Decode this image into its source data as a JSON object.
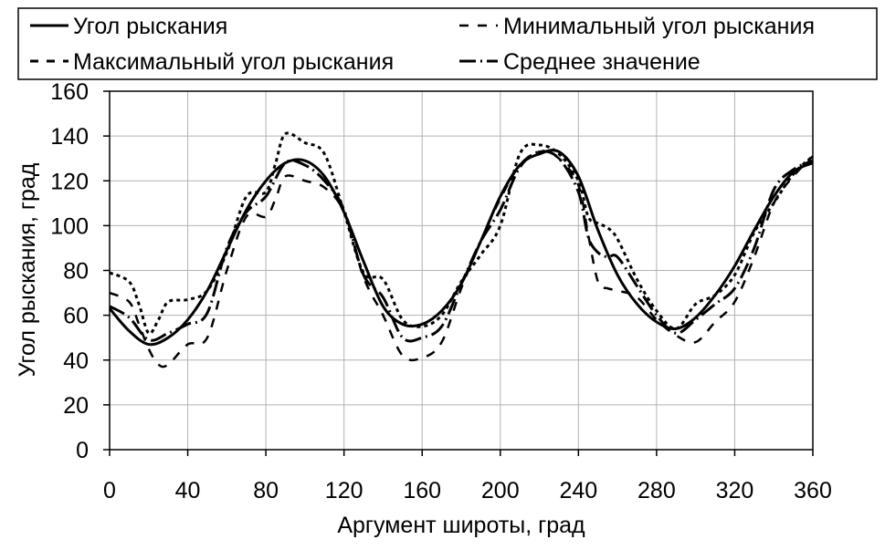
{
  "chart_data": {
    "type": "line",
    "xlabel": "Аргумент широты, град",
    "ylabel": "Угол рыскания, град",
    "xlim": [
      0,
      360
    ],
    "ylim": [
      0,
      160
    ],
    "xticks": [
      "0",
      "40",
      "80",
      "120",
      "160",
      "200",
      "240",
      "280",
      "320",
      "360"
    ],
    "yticks": [
      "0",
      "20",
      "40",
      "60",
      "80",
      "100",
      "120",
      "140",
      "160"
    ],
    "grid": true,
    "legend_position": "top",
    "series": [
      {
        "name": "Угол рыскания",
        "style": "solid",
        "x": [
          0,
          10,
          20,
          30,
          40,
          50,
          60,
          70,
          80,
          90,
          100,
          110,
          120,
          130,
          140,
          150,
          160,
          170,
          180,
          190,
          200,
          210,
          220,
          230,
          240,
          250,
          260,
          270,
          280,
          290,
          300,
          310,
          320,
          330,
          340,
          350,
          360
        ],
        "values": [
          63,
          53,
          47,
          50,
          58,
          71,
          89,
          107,
          120,
          128,
          129,
          122,
          106,
          84,
          64,
          56,
          56,
          62,
          74,
          93,
          113,
          127,
          132,
          133,
          122,
          98,
          78,
          65,
          57,
          54,
          59,
          69,
          82,
          98,
          113,
          124,
          128
        ]
      },
      {
        "name": "Минимальный угол рыскания",
        "style": "dashed",
        "x": [
          0,
          10,
          15,
          20,
          25,
          30,
          40,
          50,
          60,
          70,
          80,
          85,
          90,
          100,
          110,
          120,
          130,
          140,
          150,
          160,
          170,
          180,
          190,
          200,
          210,
          220,
          230,
          240,
          245,
          250,
          255,
          260,
          270,
          280,
          290,
          300,
          310,
          320,
          330,
          340,
          350,
          360
        ],
        "values": [
          70,
          66,
          56,
          45,
          38,
          38,
          47,
          50,
          80,
          104,
          104,
          112,
          122,
          120,
          117,
          106,
          77,
          60,
          42,
          41,
          48,
          72,
          93,
          112,
          127,
          133,
          130,
          118,
          96,
          75,
          72,
          71,
          68,
          58,
          51,
          48,
          57,
          66,
          86,
          110,
          122,
          131
        ]
      },
      {
        "name": "Максимальный угол рыскания",
        "style": "dotted",
        "x": [
          0,
          10,
          15,
          20,
          25,
          30,
          40,
          50,
          60,
          70,
          80,
          85,
          90,
          100,
          110,
          120,
          130,
          140,
          150,
          160,
          170,
          180,
          190,
          200,
          210,
          220,
          230,
          240,
          245,
          250,
          255,
          260,
          270,
          280,
          290,
          300,
          310,
          320,
          330,
          340,
          350,
          360
        ],
        "values": [
          79,
          75,
          65,
          52,
          58,
          66,
          67,
          71,
          88,
          113,
          115,
          128,
          141,
          137,
          132,
          106,
          79,
          76,
          58,
          55,
          60,
          75,
          87,
          100,
          132,
          136,
          132,
          120,
          104,
          101,
          99,
          94,
          76,
          62,
          54,
          65,
          69,
          78,
          97,
          110,
          123,
          131
        ]
      },
      {
        "name": "Среднее значение",
        "style": "dash-dot",
        "x": [
          0,
          10,
          20,
          30,
          40,
          50,
          60,
          70,
          80,
          90,
          100,
          110,
          120,
          130,
          140,
          150,
          160,
          170,
          180,
          190,
          200,
          210,
          220,
          230,
          240,
          245,
          250,
          255,
          260,
          270,
          280,
          290,
          300,
          310,
          320,
          330,
          340,
          350,
          360
        ],
        "values": [
          64,
          59,
          49,
          52,
          56,
          61,
          90,
          106,
          113,
          128,
          127,
          120,
          107,
          78,
          68,
          50,
          50,
          55,
          74,
          93,
          107,
          126,
          133,
          130,
          115,
          95,
          88,
          86,
          86,
          73,
          60,
          52,
          58,
          65,
          72,
          90,
          116,
          125,
          129
        ]
      }
    ]
  }
}
